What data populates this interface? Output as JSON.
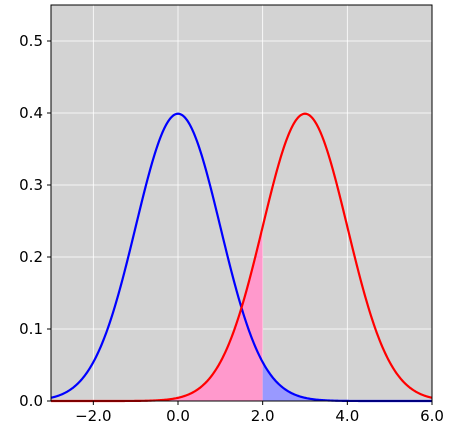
{
  "chart_data": {
    "type": "line",
    "title": "",
    "xlabel": "",
    "ylabel": "",
    "xlim": [
      -3.0,
      6.0
    ],
    "ylim": [
      0.0,
      0.55
    ],
    "grid": true,
    "legend": "none",
    "background_color": "#d3d3d3",
    "x_ticks": [
      -2.0,
      0.0,
      2.0,
      4.0,
      6.0
    ],
    "x_tick_labels": [
      "−2.0",
      "0.0",
      "2.0",
      "4.0",
      "6.0"
    ],
    "y_ticks": [
      0.0,
      0.1,
      0.2,
      0.3,
      0.4,
      0.5
    ],
    "y_tick_labels": [
      "0.0",
      "0.1",
      "0.2",
      "0.3",
      "0.4",
      "0.5"
    ],
    "series": [
      {
        "distribution": "normal",
        "mean": 0.0,
        "std": 1.0,
        "peak": 0.399,
        "color": "#0000ff",
        "x": [
          -3.0,
          -2.5,
          -2.0,
          -1.5,
          -1.0,
          -0.5,
          0.0,
          0.5,
          1.0,
          1.5,
          2.0,
          2.5,
          3.0,
          3.5,
          4.0,
          4.5,
          5.0,
          5.5,
          6.0
        ],
        "values": [
          0.004,
          0.018,
          0.054,
          0.13,
          0.242,
          0.352,
          0.399,
          0.352,
          0.242,
          0.13,
          0.054,
          0.018,
          0.004,
          0.001,
          0.0,
          0.0,
          0.0,
          0.0,
          0.0
        ]
      },
      {
        "distribution": "normal",
        "mean": 3.0,
        "std": 1.0,
        "peak": 0.399,
        "color": "#ff0000",
        "x": [
          -3.0,
          -2.5,
          -2.0,
          -1.5,
          -1.0,
          -0.5,
          0.0,
          0.5,
          1.0,
          1.5,
          2.0,
          2.5,
          3.0,
          3.5,
          4.0,
          4.5,
          5.0,
          5.5,
          6.0
        ],
        "values": [
          0.0,
          0.0,
          0.0,
          0.0,
          0.0,
          0.001,
          0.004,
          0.018,
          0.054,
          0.13,
          0.242,
          0.352,
          0.399,
          0.352,
          0.242,
          0.13,
          0.054,
          0.018,
          0.004
        ]
      }
    ],
    "shaded_regions": [
      {
        "under_series": 1,
        "x_from": -3.0,
        "x_to": 2.0,
        "color": "#ff99cc"
      },
      {
        "under_series": 0,
        "x_from": 2.0,
        "x_to": 6.0,
        "color": "#9999ff"
      }
    ]
  }
}
